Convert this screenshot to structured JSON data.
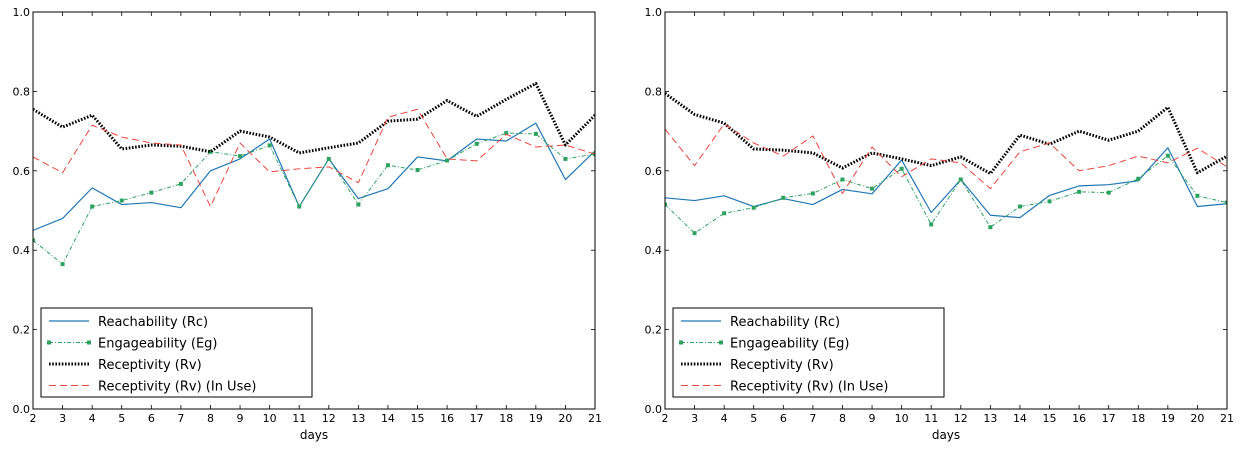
{
  "chart_data": [
    {
      "type": "line",
      "xlabel": "days",
      "ylabel": "",
      "title": "",
      "xlim": [
        2,
        21
      ],
      "ylim": [
        0.0,
        1.0
      ],
      "x_ticks": [
        "2",
        "3",
        "4",
        "5",
        "6",
        "7",
        "8",
        "9",
        "10",
        "11",
        "12",
        "13",
        "14",
        "15",
        "16",
        "17",
        "18",
        "19",
        "20",
        "21"
      ],
      "y_ticks": [
        "0.0",
        "0.2",
        "0.4",
        "0.6",
        "0.8",
        "1.0"
      ],
      "legend_position": "lower-left",
      "x": [
        2,
        3,
        4,
        5,
        6,
        7,
        8,
        9,
        10,
        11,
        12,
        13,
        14,
        15,
        16,
        17,
        18,
        19,
        20,
        21
      ],
      "series": [
        {
          "name": "Reachability (Rc)",
          "style": "solid",
          "color": "#1f77b4",
          "values": [
            0.45,
            0.48,
            0.557,
            0.515,
            0.52,
            0.507,
            0.6,
            0.63,
            0.68,
            0.51,
            0.63,
            0.53,
            0.555,
            0.635,
            0.625,
            0.68,
            0.675,
            0.72,
            0.578,
            0.65
          ]
        },
        {
          "name": "Engageability (Eg)",
          "style": "dashdot-square",
          "color": "#2ca25f",
          "values": [
            0.425,
            0.365,
            0.51,
            0.525,
            0.545,
            0.567,
            0.648,
            0.637,
            0.664,
            0.51,
            0.63,
            0.515,
            0.614,
            0.602,
            0.626,
            0.668,
            0.695,
            0.693,
            0.63,
            0.642
          ]
        },
        {
          "name": "Receptivity (Rv)",
          "style": "dotted",
          "color": "#000000",
          "values": [
            0.755,
            0.71,
            0.74,
            0.655,
            0.665,
            0.662,
            0.648,
            0.7,
            0.685,
            0.645,
            0.658,
            0.67,
            0.725,
            0.73,
            0.777,
            0.737,
            0.78,
            0.82,
            0.665,
            0.74
          ]
        },
        {
          "name": "Receptivity (Rv) (In Use)",
          "style": "dashed",
          "color": "#e8463b",
          "values": [
            0.635,
            0.595,
            0.715,
            0.685,
            0.67,
            0.665,
            0.51,
            0.67,
            0.597,
            0.605,
            0.61,
            0.57,
            0.735,
            0.755,
            0.63,
            0.625,
            0.692,
            0.66,
            0.665,
            0.642
          ]
        }
      ]
    },
    {
      "type": "line",
      "xlabel": "days",
      "ylabel": "",
      "title": "",
      "xlim": [
        2,
        21
      ],
      "ylim": [
        0.0,
        1.0
      ],
      "x_ticks": [
        "2",
        "3",
        "4",
        "5",
        "6",
        "7",
        "8",
        "9",
        "10",
        "11",
        "12",
        "13",
        "14",
        "15",
        "16",
        "17",
        "18",
        "19",
        "20",
        "21"
      ],
      "y_ticks": [
        "0.0",
        "0.2",
        "0.4",
        "0.6",
        "0.8",
        "1.0"
      ],
      "legend_position": "lower-left",
      "x": [
        2,
        3,
        4,
        5,
        6,
        7,
        8,
        9,
        10,
        11,
        12,
        13,
        14,
        15,
        16,
        17,
        18,
        19,
        20,
        21
      ],
      "series": [
        {
          "name": "Reachability (Rc)",
          "style": "solid",
          "color": "#1f77b4",
          "values": [
            0.532,
            0.525,
            0.537,
            0.51,
            0.53,
            0.515,
            0.553,
            0.542,
            0.627,
            0.495,
            0.578,
            0.488,
            0.482,
            0.538,
            0.562,
            0.565,
            0.575,
            0.658,
            0.51,
            0.517
          ]
        },
        {
          "name": "Engageability (Eg)",
          "style": "dashdot-square",
          "color": "#2ca25f",
          "values": [
            0.515,
            0.443,
            0.493,
            0.507,
            0.532,
            0.543,
            0.578,
            0.555,
            0.605,
            0.465,
            0.578,
            0.458,
            0.51,
            0.523,
            0.547,
            0.545,
            0.58,
            0.638,
            0.537,
            0.52
          ]
        },
        {
          "name": "Receptivity (Rv)",
          "style": "dotted",
          "color": "#000000",
          "values": [
            0.795,
            0.742,
            0.72,
            0.655,
            0.652,
            0.645,
            0.607,
            0.645,
            0.63,
            0.613,
            0.635,
            0.593,
            0.69,
            0.667,
            0.7,
            0.677,
            0.7,
            0.76,
            0.595,
            0.637
          ]
        },
        {
          "name": "Receptivity (Rv) (In Use)",
          "style": "dashed",
          "color": "#e8463b",
          "values": [
            0.705,
            0.613,
            0.718,
            0.67,
            0.637,
            0.688,
            0.543,
            0.66,
            0.585,
            0.63,
            0.62,
            0.555,
            0.648,
            0.67,
            0.6,
            0.613,
            0.637,
            0.62,
            0.657,
            0.61
          ]
        }
      ]
    }
  ]
}
